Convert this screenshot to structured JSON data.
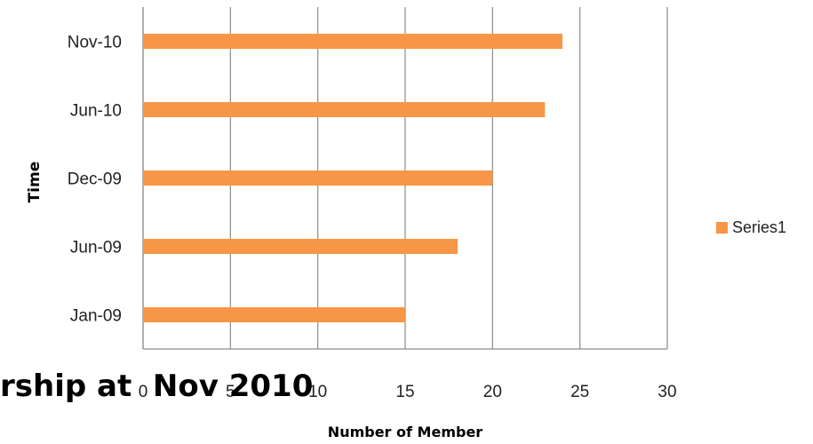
{
  "chart_data": {
    "type": "bar",
    "orientation": "horizontal",
    "categories": [
      "Jan-09",
      "Jun-09",
      "Dec-09",
      "Jun-10",
      "Nov-10"
    ],
    "series": [
      {
        "name": "Series1",
        "values": [
          15,
          18,
          20,
          23,
          24
        ]
      }
    ],
    "xlabel": "Number of Member",
    "ylabel": "Time",
    "xlim": [
      0,
      30
    ],
    "xticks": [
      0,
      5,
      10,
      15,
      20,
      25,
      30
    ],
    "grid": true,
    "legend_position": "right",
    "bar_color": "#f79646",
    "partial_title": "rship at  Nov 2010"
  }
}
